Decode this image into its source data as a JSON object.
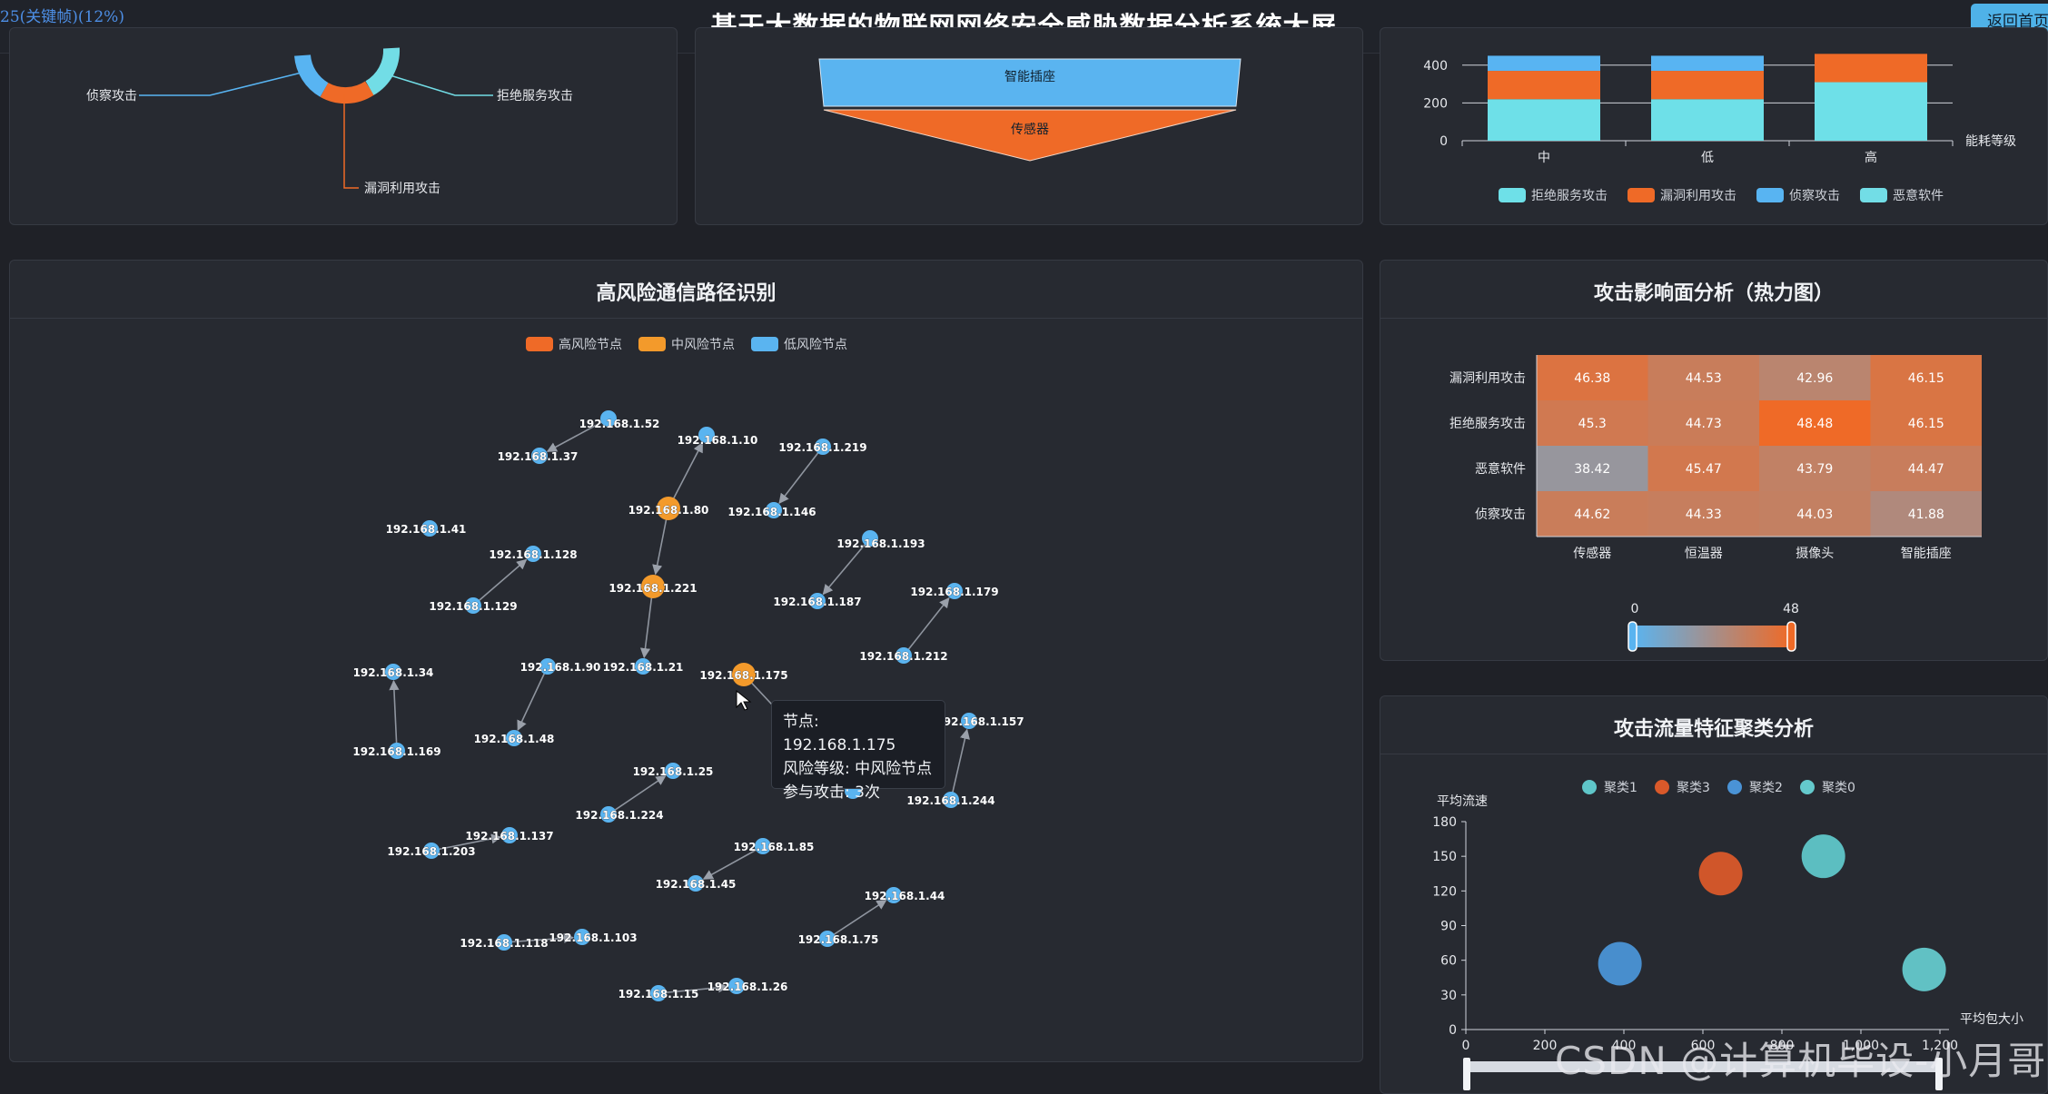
{
  "header": {
    "title": "基于大数据的物联网网络安全威胁数据分析系统大屏",
    "frame_label": "25(关键帧)(12%)",
    "back_label": "返回首页"
  },
  "panel_attack_types": {
    "labels": [
      "侦察攻击",
      "拒绝服务攻击",
      "漏洞利用攻击"
    ]
  },
  "panel_funnel": {
    "stages": [
      "智能插座",
      "传感器"
    ]
  },
  "panel_energy_bar": {
    "chart_data": {
      "type": "bar",
      "stacked": true,
      "categories": [
        "中",
        "低",
        "高"
      ],
      "xlabel": "能耗等级",
      "y_ticks": [
        0,
        200,
        400
      ],
      "series": [
        {
          "name": "拒绝服务攻击",
          "color": "#6ee0e8",
          "values": [
            220,
            220,
            310
          ]
        },
        {
          "name": "漏洞利用攻击",
          "color": "#ef6a27",
          "values": [
            150,
            150,
            150
          ]
        },
        {
          "name": "侦察攻击",
          "color": "#58b4f2",
          "values": [
            80,
            80,
            0
          ]
        },
        {
          "name": "恶意软件",
          "color": "#72dde6",
          "values": [
            0,
            0,
            0
          ]
        }
      ]
    }
  },
  "panel_network": {
    "title": "高风险通信路径识别",
    "legend": [
      {
        "name": "高风险节点",
        "color": "#ef6a27"
      },
      {
        "name": "中风险节点",
        "color": "#f39a2b"
      },
      {
        "name": "低风险节点",
        "color": "#5ab4f0"
      }
    ],
    "nodes": [
      {
        "id": "192.168.1.52",
        "risk": "low"
      },
      {
        "id": "192.168.1.37",
        "risk": "low"
      },
      {
        "id": "192.168.1.10",
        "risk": "low"
      },
      {
        "id": "192.168.1.219",
        "risk": "low"
      },
      {
        "id": "192.168.1.80",
        "risk": "medium"
      },
      {
        "id": "192.168.1.146",
        "risk": "low"
      },
      {
        "id": "192.168.1.41",
        "risk": "low"
      },
      {
        "id": "192.168.1.128",
        "risk": "low"
      },
      {
        "id": "192.168.1.193",
        "risk": "low"
      },
      {
        "id": "192.168.1.221",
        "risk": "medium"
      },
      {
        "id": "192.168.1.129",
        "risk": "low"
      },
      {
        "id": "192.168.1.187",
        "risk": "low"
      },
      {
        "id": "192.168.1.179",
        "risk": "low"
      },
      {
        "id": "192.168.1.212",
        "risk": "low"
      },
      {
        "id": "192.168.1.34",
        "risk": "low"
      },
      {
        "id": "192.168.1.90",
        "risk": "low"
      },
      {
        "id": "192.168.1.21",
        "risk": "low"
      },
      {
        "id": "192.168.1.175",
        "risk": "medium"
      },
      {
        "id": "192.168.1.157",
        "risk": "low"
      },
      {
        "id": "192.168.1.169",
        "risk": "low"
      },
      {
        "id": "192.168.1.48",
        "risk": "low"
      },
      {
        "id": "192.168.1.244",
        "risk": "low"
      },
      {
        "id": "192.168.1.25",
        "risk": "low"
      },
      {
        "id": "192.168.1.224",
        "risk": "low"
      },
      {
        "id": "192.168.1.137",
        "risk": "low"
      },
      {
        "id": "192.168.1.203",
        "risk": "low"
      },
      {
        "id": "192.168.1.85",
        "risk": "low"
      },
      {
        "id": "192.168.1.45",
        "risk": "low"
      },
      {
        "id": "192.168.1.44",
        "risk": "low"
      },
      {
        "id": "192.168.1.75",
        "risk": "low"
      },
      {
        "id": "192.168.1.118",
        "risk": "low"
      },
      {
        "id": "192.168.1.103",
        "risk": "low"
      },
      {
        "id": "192.168.1.15",
        "risk": "low"
      },
      {
        "id": "192.168.1.26",
        "risk": "low"
      },
      {
        "id": "hidden",
        "risk": "low"
      }
    ],
    "edges": [
      [
        "192.168.1.52",
        "192.168.1.37"
      ],
      [
        "192.168.1.80",
        "192.168.1.10"
      ],
      [
        "192.168.1.219",
        "192.168.1.146"
      ],
      [
        "192.168.1.80",
        "192.168.1.221"
      ],
      [
        "192.168.1.129",
        "192.168.1.128"
      ],
      [
        "192.168.1.193",
        "192.168.1.187"
      ],
      [
        "192.168.1.212",
        "192.168.1.179"
      ],
      [
        "192.168.1.221",
        "192.168.1.21"
      ],
      [
        "192.168.1.169",
        "192.168.1.34"
      ],
      [
        "192.168.1.90",
        "192.168.1.48"
      ],
      [
        "192.168.1.175",
        "hidden"
      ],
      [
        "192.168.1.244",
        "192.168.1.157"
      ],
      [
        "192.168.1.224",
        "192.168.1.25"
      ],
      [
        "192.168.1.203",
        "192.168.1.137"
      ],
      [
        "192.168.1.85",
        "192.168.1.45"
      ],
      [
        "192.168.1.75",
        "192.168.1.44"
      ],
      [
        "192.168.1.118",
        "192.168.1.103"
      ],
      [
        "192.168.1.15",
        "192.168.1.26"
      ]
    ],
    "tooltip": {
      "line1": "节点: 192.168.1.175",
      "line2": "风险等级: 中风险节点",
      "line3": "参与攻击: 3次"
    }
  },
  "panel_heatmap": {
    "title": "攻击影响面分析（热力图）",
    "chart_data": {
      "type": "heatmap",
      "rows": [
        "漏洞利用攻击",
        "拒绝服务攻击",
        "恶意软件",
        "侦察攻击"
      ],
      "cols": [
        "传感器",
        "恒温器",
        "摄像头",
        "智能插座"
      ],
      "values": [
        [
          46.38,
          44.53,
          42.96,
          46.15
        ],
        [
          45.3,
          44.73,
          48.48,
          46.15
        ],
        [
          38.42,
          45.47,
          43.79,
          44.47
        ],
        [
          44.62,
          44.33,
          44.03,
          41.88
        ]
      ],
      "range": [
        0,
        48
      ],
      "range_labels": [
        "0",
        "48"
      ],
      "color_low": "#5ab4f0",
      "color_high": "#ef6a27"
    }
  },
  "panel_cluster": {
    "title": "攻击流量特征聚类分析",
    "chart_data": {
      "type": "scatter",
      "xlabel": "平均包大小",
      "ylabel": "平均流速",
      "xlim": [
        0,
        1200
      ],
      "ylim": [
        0,
        180
      ],
      "x_ticks": [
        "0",
        "200",
        "400",
        "600",
        "800",
        "1,000",
        "1,200"
      ],
      "y_ticks": [
        "0",
        "30",
        "60",
        "90",
        "120",
        "150",
        "180"
      ],
      "series": [
        {
          "name": "聚类1",
          "color": "#5fc6c9",
          "points": [
            [
              905,
              150
            ]
          ]
        },
        {
          "name": "聚类3",
          "color": "#d9592a",
          "points": [
            [
              645,
              135
            ]
          ]
        },
        {
          "name": "聚类2",
          "color": "#4a93d6",
          "points": [
            [
              390,
              57
            ]
          ]
        },
        {
          "name": "聚类0",
          "color": "#64c9cc",
          "points": [
            [
              1160,
              52
            ]
          ]
        }
      ]
    }
  },
  "watermark": "CSDN @计算机毕设-小月哥"
}
